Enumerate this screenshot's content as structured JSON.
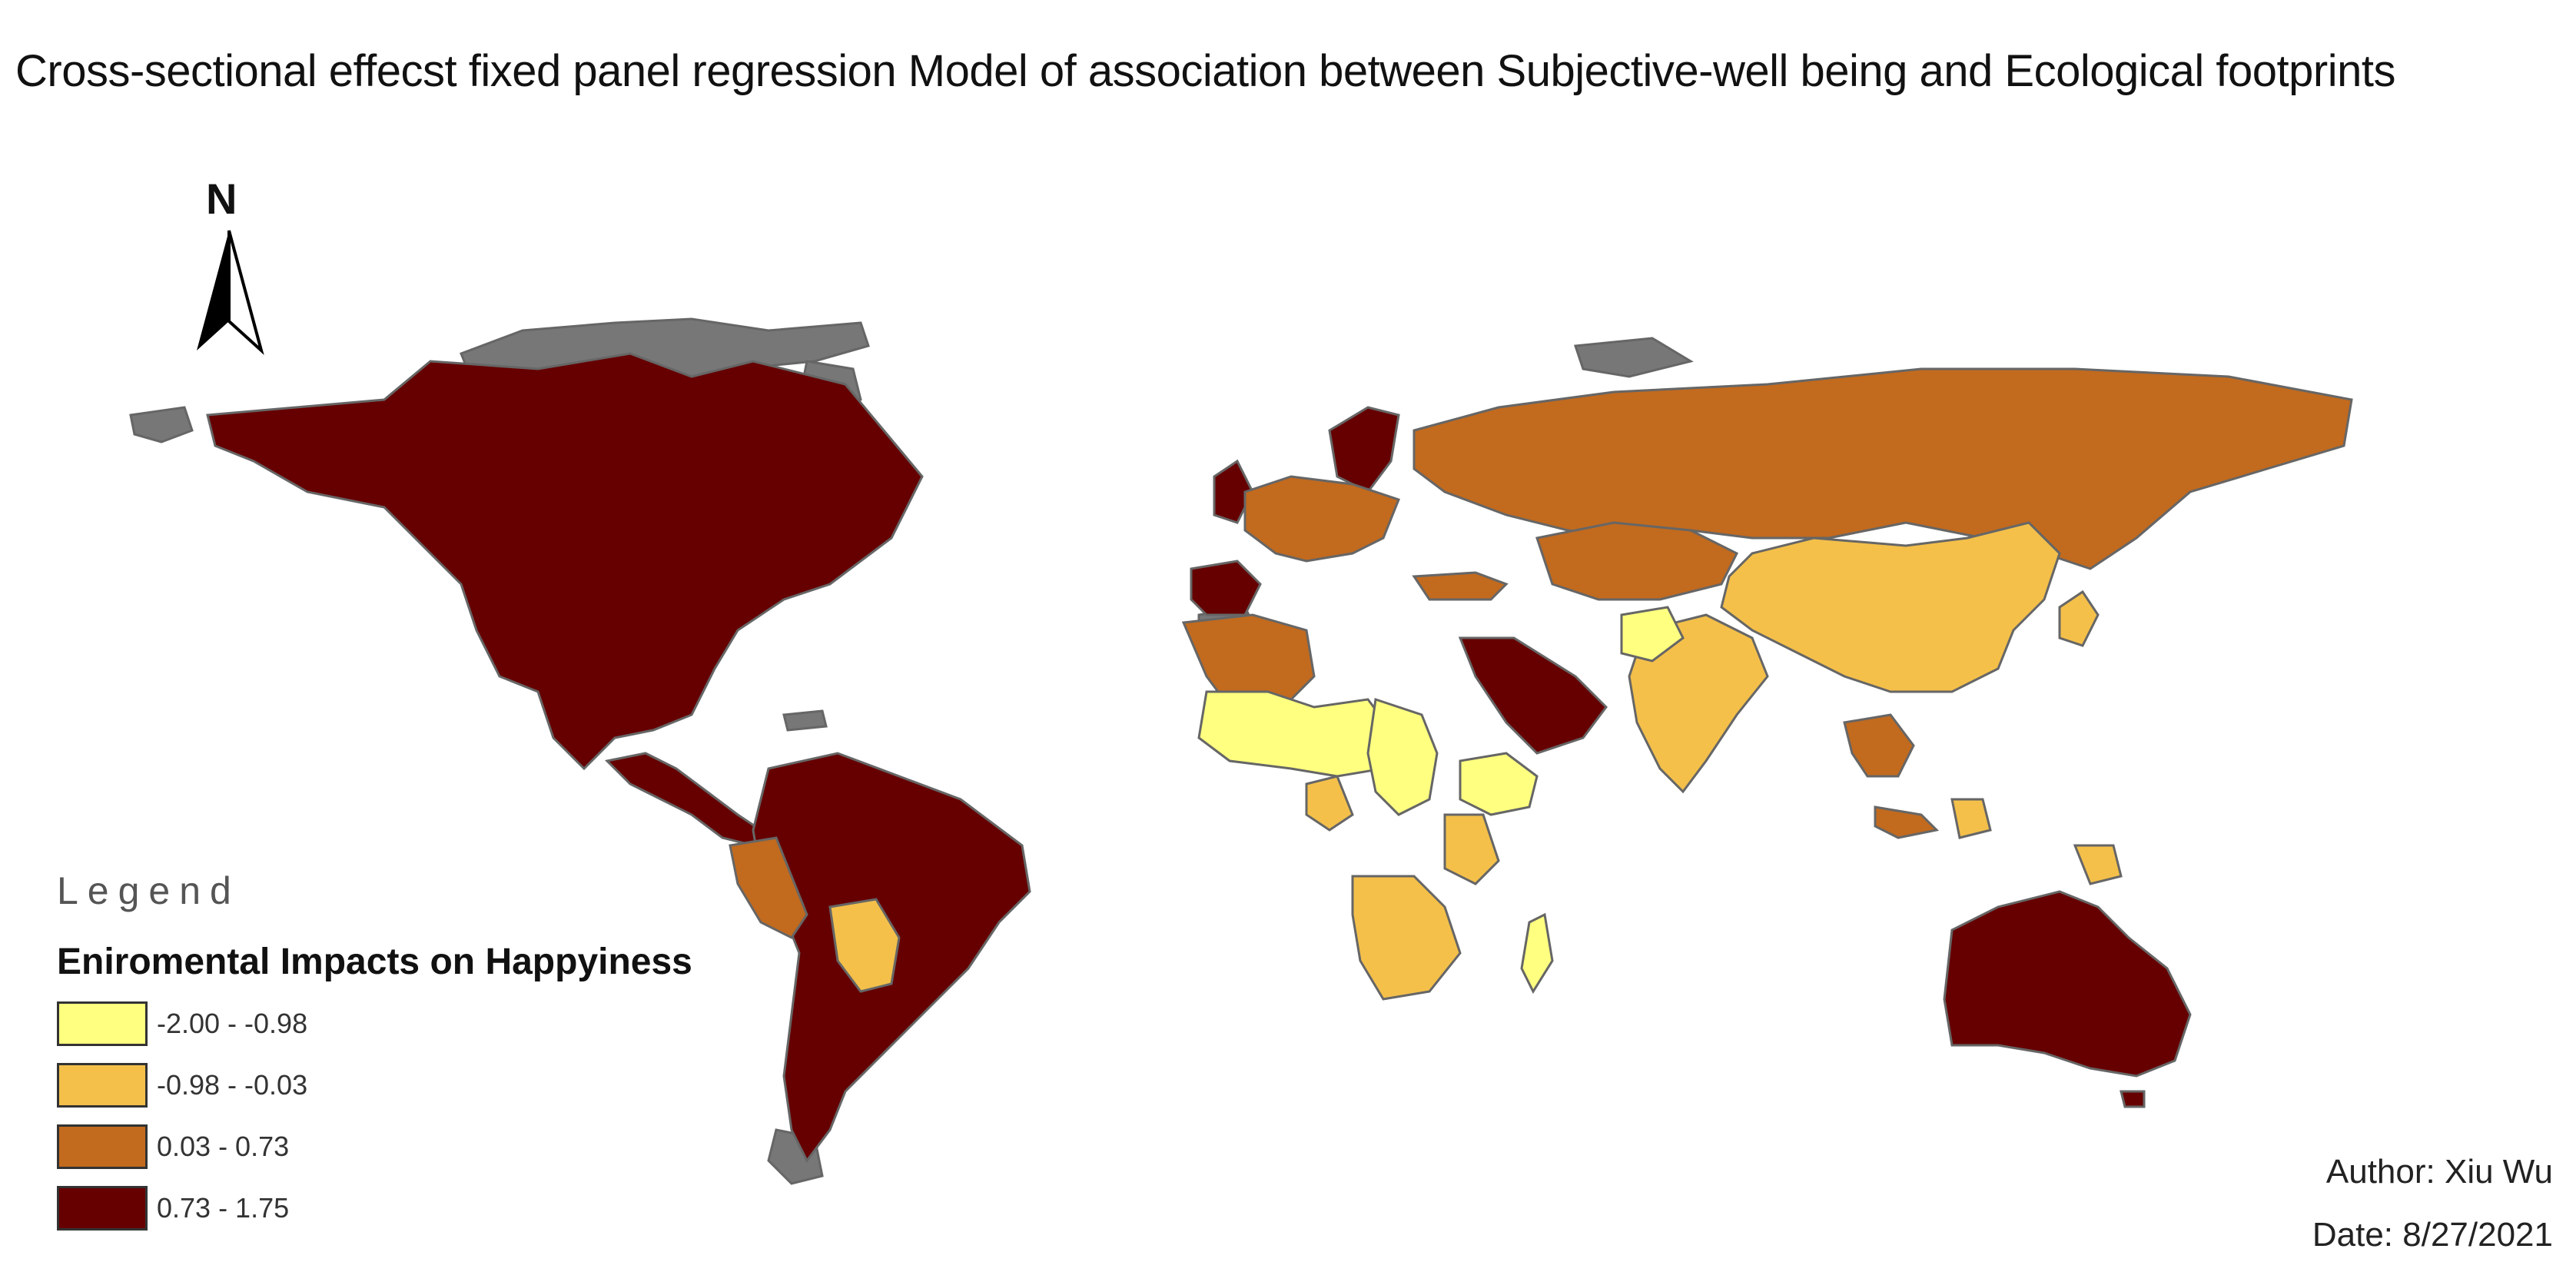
{
  "title": "Cross-sectional effecst fixed panel regression Model of association between Subjective-well being and Ecological footprints",
  "north_arrow": {
    "label": "N"
  },
  "legend": {
    "heading": "Legend",
    "subtitle": "Eniromental Impacts on Happyiness",
    "classes": [
      {
        "label": "-2.00 - -0.98",
        "color": "#FFFF80"
      },
      {
        "label": "-0.98 - -0.03",
        "color": "#F4C04A"
      },
      {
        "label": "0.03 - 0.73",
        "color": "#C26A1E"
      },
      {
        "label": "0.73 - 1.75",
        "color": "#660000"
      }
    ]
  },
  "colors": {
    "no_data": "#777777",
    "border": "#666666",
    "background": "#FFFFFF"
  },
  "credits": {
    "author": "Author: Xiu Wu",
    "date": "Date: 8/27/2021"
  }
}
